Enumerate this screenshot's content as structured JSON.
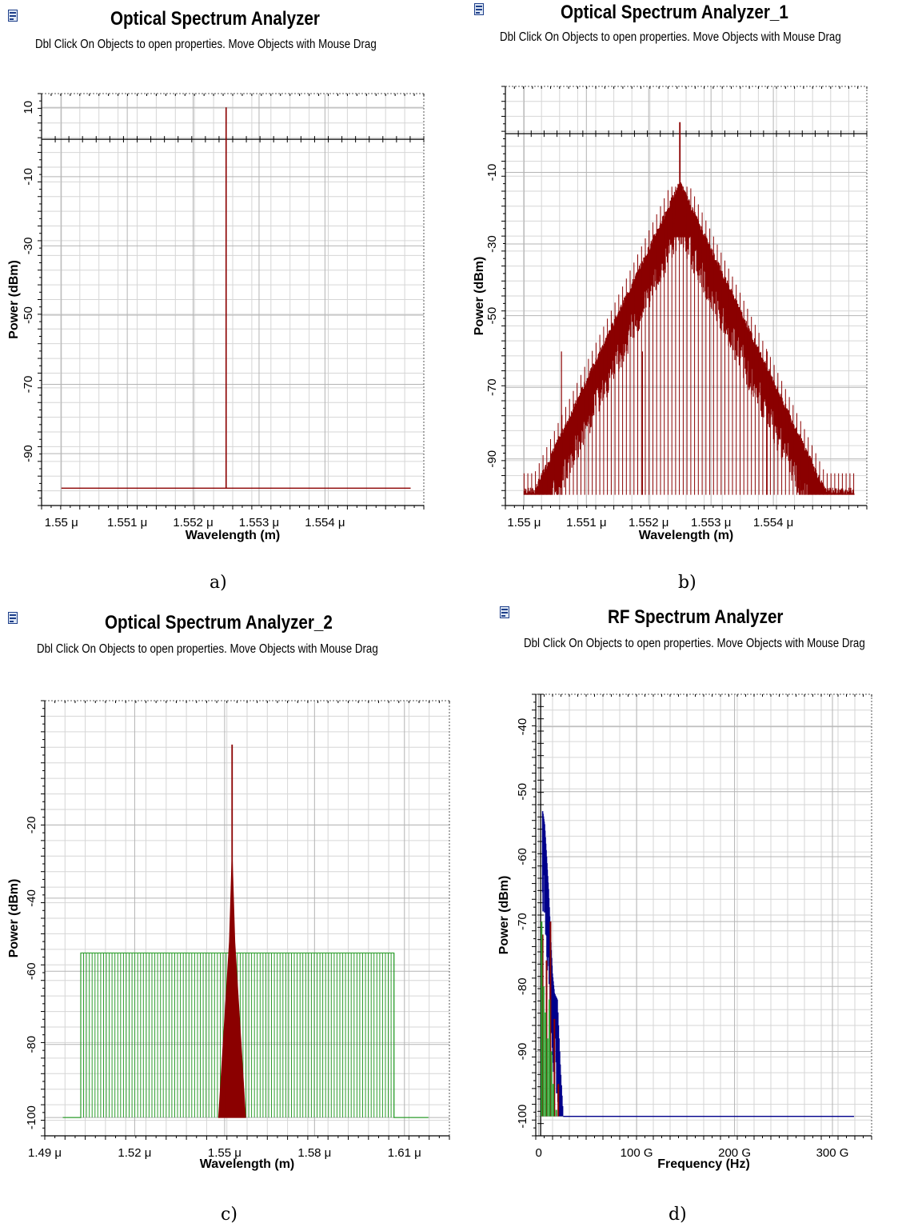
{
  "panels": [
    {
      "caption": "a)",
      "title": "Optical Spectrum Analyzer",
      "subtitle": "Dbl Click On Objects to open properties.  Move Objects with Mouse Drag",
      "chart_data": {
        "type": "line",
        "xlabel": "Wavelength (m)",
        "ylabel": "Power (dBm)",
        "xlim": [
          1.5497,
          1.5555
        ],
        "ylim": [
          -105,
          14
        ],
        "xticks": [
          1.55,
          1.551,
          1.552,
          1.553,
          1.554
        ],
        "xtick_labels": [
          "1.55 μ",
          "1.551 μ",
          "1.552 μ",
          "1.553 μ",
          "1.554 μ"
        ],
        "yticks": [
          10,
          -10,
          -30,
          -50,
          -70,
          -90
        ],
        "ytick_labels": [
          "10",
          "-10",
          "-30",
          "-50",
          "-70",
          "-90"
        ],
        "hline": 0.8,
        "grid": true,
        "series": [
          {
            "color": "#8b0000",
            "kind": "single_peak",
            "x_start": 1.55,
            "x_end": 1.5553,
            "floor": -100,
            "peak_x": 1.5525,
            "peak_y": 10
          }
        ]
      }
    },
    {
      "caption": "b)",
      "title": "Optical Spectrum Analyzer_1",
      "subtitle": "Dbl Click On Objects to open properties.  Move Objects with Mouse Drag",
      "chart_data": {
        "type": "line",
        "xlabel": "Wavelength (m)",
        "ylabel": "Power (dBm)",
        "xlim": [
          1.5497,
          1.5555
        ],
        "ylim": [
          -103,
          14
        ],
        "xticks": [
          1.55,
          1.551,
          1.552,
          1.553,
          1.554
        ],
        "xtick_labels": [
          "1.55 μ",
          "1.551 μ",
          "1.552 μ",
          "1.553 μ",
          "1.554 μ"
        ],
        "yticks": [
          -10,
          -30,
          -50,
          -70,
          -90
        ],
        "ytick_labels": [
          "-10",
          "-30",
          "-50",
          "-70",
          "-90"
        ],
        "hline": 0.8,
        "grid": true,
        "series": [
          {
            "color": "#8b0000",
            "kind": "comb_triangle",
            "x_start": 1.55,
            "x_end": 1.5553,
            "floor": -100,
            "center_x": 1.5525,
            "peak_y": 4,
            "sub_peak_y": -14,
            "envelope_width": 1.2,
            "band_depth": 16,
            "spacing": 3.8e-05
          }
        ]
      }
    },
    {
      "caption": "c)",
      "title": "Optical Spectrum Analyzer_2",
      "subtitle": "Dbl Click On Objects to open properties.  Move Objects with Mouse Drag",
      "chart_data": {
        "type": "line",
        "xlabel": "Wavelength (m)",
        "ylabel": "Power (dBm)",
        "xlim": [
          1.49,
          1.625
        ],
        "ylim": [
          -105,
          14
        ],
        "xticks": [
          1.49,
          1.52,
          1.55,
          1.58,
          1.61
        ],
        "xtick_labels": [
          "1.49 μ",
          "1.52 μ",
          "1.55 μ",
          "1.58 μ",
          "1.61 μ"
        ],
        "yticks": [
          -20,
          -40,
          -60,
          -80,
          -100
        ],
        "ytick_labels": [
          "-20",
          "-40",
          "-60",
          "-80",
          "-100"
        ],
        "grid": true,
        "series": [
          {
            "color": "#2e9e2e",
            "kind": "flat_comb",
            "x_start": 1.496,
            "x_end": 1.618,
            "floor": -100,
            "band_start": 1.502,
            "band_end": 1.6065,
            "level": -55,
            "spacing": 0.00095
          },
          {
            "color": "#8b0000",
            "kind": "narrow_cluster",
            "center_x": 1.5525,
            "peak_y": 2,
            "floor": -100,
            "half_width": 0.0045
          }
        ]
      }
    },
    {
      "caption": "d)",
      "title": "RF Spectrum Analyzer",
      "subtitle": "Dbl Click On Objects to open properties.  Move Objects with Mouse Drag",
      "chart_data": {
        "type": "line",
        "xlabel": "Frequency (Hz)",
        "ylabel": "Power (dBm)",
        "xlim": [
          -3,
          340
        ],
        "ylim": [
          -103,
          -35
        ],
        "xticks": [
          0,
          100,
          200,
          300
        ],
        "xtick_labels": [
          "0",
          "100 G",
          "200 G",
          "300 G"
        ],
        "yticks": [
          -40,
          -50,
          -60,
          -70,
          -80,
          -90,
          -100
        ],
        "ytick_labels": [
          "-40",
          "-50",
          "-60",
          "-70",
          "-80",
          "-90",
          "-100"
        ],
        "vline": 2,
        "grid": true,
        "series": [
          {
            "color": "#00008b",
            "kind": "rf_decay",
            "floor": -100,
            "x_end": 322,
            "points": [
              [
                4,
                -53
              ],
              [
                6,
                -55
              ],
              [
                8,
                -60
              ],
              [
                10,
                -65
              ],
              [
                12,
                -72
              ],
              [
                14,
                -78
              ],
              [
                16,
                -81
              ],
              [
                19,
                -82
              ],
              [
                22,
                -92
              ],
              [
                25,
                -100
              ]
            ]
          },
          {
            "color": "#8b0000",
            "kind": "rf_noise",
            "floor": -100,
            "points": [
              [
                4,
                -72
              ],
              [
                8,
                -76
              ],
              [
                12,
                -70
              ],
              [
                16,
                -85
              ],
              [
                20,
                -95
              ]
            ]
          },
          {
            "color": "#2e9e2e",
            "kind": "rf_noise",
            "floor": -100,
            "points": [
              [
                3,
                -70
              ],
              [
                5,
                -80
              ],
              [
                7,
                -84
              ],
              [
                9,
                -88
              ],
              [
                11,
                -82
              ],
              [
                13,
                -90
              ],
              [
                15,
                -95
              ],
              [
                18,
                -99
              ]
            ]
          }
        ]
      }
    }
  ]
}
